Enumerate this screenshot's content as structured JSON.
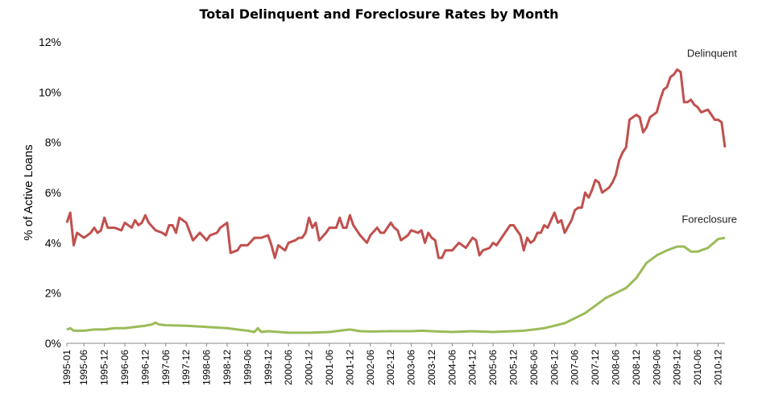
{
  "chart_data": {
    "type": "line",
    "title": "Total Delinquent and Foreclosure Rates by Month",
    "ylabel": "% of Active Loans",
    "ylim": [
      0,
      12
    ],
    "y_ticks": [
      "0%",
      "2%",
      "4%",
      "6%",
      "8%",
      "10%",
      "12%"
    ],
    "x_ticks": [
      "1995-01",
      "1995-06",
      "1995-12",
      "1996-06",
      "1996-12",
      "1997-06",
      "1997-12",
      "1998-06",
      "1998-12",
      "1999-06",
      "1999-12",
      "2000-06",
      "2000-12",
      "2001-06",
      "2001-12",
      "2002-06",
      "2002-12",
      "2003-06",
      "2003-12",
      "2004-06",
      "2004-12",
      "2005-06",
      "2005-12",
      "2006-06",
      "2006-12",
      "2007-06",
      "2007-12",
      "2008-06",
      "2008-12",
      "2009-06",
      "2009-12",
      "2010-06",
      "2010-12"
    ],
    "grid": false,
    "legend": "none",
    "series": [
      {
        "name": "Delinquent",
        "color": "#c0504d",
        "points": [
          [
            "1995-01",
            4.8
          ],
          [
            "1995-02",
            5.2
          ],
          [
            "1995-03",
            3.9
          ],
          [
            "1995-04",
            4.4
          ],
          [
            "1995-06",
            4.2
          ],
          [
            "1995-08",
            4.4
          ],
          [
            "1995-09",
            4.6
          ],
          [
            "1995-10",
            4.4
          ],
          [
            "1995-11",
            4.5
          ],
          [
            "1995-12",
            5.0
          ],
          [
            "1996-01",
            4.6
          ],
          [
            "1996-03",
            4.6
          ],
          [
            "1996-05",
            4.5
          ],
          [
            "1996-06",
            4.8
          ],
          [
            "1996-08",
            4.6
          ],
          [
            "1996-09",
            4.9
          ],
          [
            "1996-10",
            4.7
          ],
          [
            "1996-11",
            4.8
          ],
          [
            "1996-12",
            5.1
          ],
          [
            "1997-01",
            4.8
          ],
          [
            "1997-03",
            4.5
          ],
          [
            "1997-05",
            4.4
          ],
          [
            "1997-06",
            4.3
          ],
          [
            "1997-07",
            4.7
          ],
          [
            "1997-08",
            4.7
          ],
          [
            "1997-09",
            4.4
          ],
          [
            "1997-10",
            5.0
          ],
          [
            "1997-12",
            4.8
          ],
          [
            "1998-02",
            4.1
          ],
          [
            "1998-04",
            4.4
          ],
          [
            "1998-06",
            4.1
          ],
          [
            "1998-07",
            4.3
          ],
          [
            "1998-09",
            4.4
          ],
          [
            "1998-10",
            4.6
          ],
          [
            "1998-12",
            4.8
          ],
          [
            "1999-01",
            3.6
          ],
          [
            "1999-03",
            3.7
          ],
          [
            "1999-04",
            3.9
          ],
          [
            "1999-06",
            3.9
          ],
          [
            "1999-08",
            4.2
          ],
          [
            "1999-10",
            4.2
          ],
          [
            "1999-12",
            4.3
          ],
          [
            "2000-01",
            3.9
          ],
          [
            "2000-02",
            3.4
          ],
          [
            "2000-03",
            3.9
          ],
          [
            "2000-05",
            3.7
          ],
          [
            "2000-06",
            4.0
          ],
          [
            "2000-08",
            4.1
          ],
          [
            "2000-09",
            4.2
          ],
          [
            "2000-10",
            4.2
          ],
          [
            "2000-11",
            4.4
          ],
          [
            "2000-12",
            5.0
          ],
          [
            "2001-01",
            4.6
          ],
          [
            "2001-02",
            4.8
          ],
          [
            "2001-03",
            4.1
          ],
          [
            "2001-05",
            4.4
          ],
          [
            "2001-06",
            4.6
          ],
          [
            "2001-08",
            4.6
          ],
          [
            "2001-09",
            5.0
          ],
          [
            "2001-10",
            4.6
          ],
          [
            "2001-11",
            4.6
          ],
          [
            "2001-12",
            5.1
          ],
          [
            "2002-01",
            4.7
          ],
          [
            "2002-03",
            4.3
          ],
          [
            "2002-05",
            4.0
          ],
          [
            "2002-06",
            4.3
          ],
          [
            "2002-08",
            4.6
          ],
          [
            "2002-09",
            4.4
          ],
          [
            "2002-10",
            4.4
          ],
          [
            "2002-12",
            4.8
          ],
          [
            "2003-01",
            4.6
          ],
          [
            "2003-02",
            4.5
          ],
          [
            "2003-03",
            4.1
          ],
          [
            "2003-05",
            4.3
          ],
          [
            "2003-06",
            4.5
          ],
          [
            "2003-08",
            4.4
          ],
          [
            "2003-09",
            4.5
          ],
          [
            "2003-10",
            4.0
          ],
          [
            "2003-11",
            4.4
          ],
          [
            "2003-12",
            4.2
          ],
          [
            "2004-01",
            4.1
          ],
          [
            "2004-02",
            3.4
          ],
          [
            "2004-03",
            3.4
          ],
          [
            "2004-04",
            3.7
          ],
          [
            "2004-06",
            3.7
          ],
          [
            "2004-08",
            4.0
          ],
          [
            "2004-09",
            3.9
          ],
          [
            "2004-10",
            3.8
          ],
          [
            "2004-12",
            4.2
          ],
          [
            "2005-01",
            4.1
          ],
          [
            "2005-02",
            3.5
          ],
          [
            "2005-03",
            3.7
          ],
          [
            "2005-05",
            3.8
          ],
          [
            "2005-06",
            4.0
          ],
          [
            "2005-07",
            3.9
          ],
          [
            "2005-09",
            4.3
          ],
          [
            "2005-11",
            4.7
          ],
          [
            "2005-12",
            4.7
          ],
          [
            "2006-02",
            4.3
          ],
          [
            "2006-03",
            3.7
          ],
          [
            "2006-04",
            4.2
          ],
          [
            "2006-05",
            4.0
          ],
          [
            "2006-06",
            4.1
          ],
          [
            "2006-07",
            4.4
          ],
          [
            "2006-08",
            4.4
          ],
          [
            "2006-09",
            4.7
          ],
          [
            "2006-10",
            4.6
          ],
          [
            "2006-11",
            4.9
          ],
          [
            "2006-12",
            5.2
          ],
          [
            "2007-01",
            4.8
          ],
          [
            "2007-02",
            4.9
          ],
          [
            "2007-03",
            4.4
          ],
          [
            "2007-05",
            4.9
          ],
          [
            "2007-06",
            5.3
          ],
          [
            "2007-07",
            5.4
          ],
          [
            "2007-08",
            5.4
          ],
          [
            "2007-09",
            6.0
          ],
          [
            "2007-10",
            5.8
          ],
          [
            "2007-11",
            6.1
          ],
          [
            "2007-12",
            6.5
          ],
          [
            "2008-01",
            6.4
          ],
          [
            "2008-02",
            6.0
          ],
          [
            "2008-03",
            6.1
          ],
          [
            "2008-04",
            6.2
          ],
          [
            "2008-05",
            6.4
          ],
          [
            "2008-06",
            6.7
          ],
          [
            "2008-07",
            7.3
          ],
          [
            "2008-08",
            7.6
          ],
          [
            "2008-09",
            7.8
          ],
          [
            "2008-10",
            8.9
          ],
          [
            "2008-11",
            9.0
          ],
          [
            "2008-12",
            9.1
          ],
          [
            "2009-01",
            9.0
          ],
          [
            "2009-02",
            8.4
          ],
          [
            "2009-03",
            8.6
          ],
          [
            "2009-04",
            9.0
          ],
          [
            "2009-05",
            9.1
          ],
          [
            "2009-06",
            9.2
          ],
          [
            "2009-07",
            9.7
          ],
          [
            "2009-08",
            10.1
          ],
          [
            "2009-09",
            10.2
          ],
          [
            "2009-10",
            10.6
          ],
          [
            "2009-11",
            10.7
          ],
          [
            "2009-12",
            10.9
          ],
          [
            "2010-01",
            10.8
          ],
          [
            "2010-02",
            9.6
          ],
          [
            "2010-03",
            9.6
          ],
          [
            "2010-04",
            9.7
          ],
          [
            "2010-05",
            9.5
          ],
          [
            "2010-06",
            9.4
          ],
          [
            "2010-07",
            9.2
          ],
          [
            "2010-09",
            9.3
          ],
          [
            "2010-10",
            9.1
          ],
          [
            "2010-11",
            8.9
          ],
          [
            "2010-12",
            8.9
          ],
          [
            "2011-01",
            8.8
          ],
          [
            "2011-02",
            7.8
          ]
        ]
      },
      {
        "name": "Foreclosure",
        "color": "#9bbb59",
        "points": [
          [
            "1995-01",
            0.55
          ],
          [
            "1995-02",
            0.6
          ],
          [
            "1995-03",
            0.5
          ],
          [
            "1995-06",
            0.5
          ],
          [
            "1995-09",
            0.55
          ],
          [
            "1995-12",
            0.55
          ],
          [
            "1996-03",
            0.6
          ],
          [
            "1996-06",
            0.6
          ],
          [
            "1996-09",
            0.65
          ],
          [
            "1996-12",
            0.7
          ],
          [
            "1997-02",
            0.75
          ],
          [
            "1997-03",
            0.82
          ],
          [
            "1997-04",
            0.75
          ],
          [
            "1997-06",
            0.72
          ],
          [
            "1997-12",
            0.7
          ],
          [
            "1998-06",
            0.65
          ],
          [
            "1998-12",
            0.6
          ],
          [
            "1999-03",
            0.55
          ],
          [
            "1999-06",
            0.5
          ],
          [
            "1999-08",
            0.45
          ],
          [
            "1999-09",
            0.6
          ],
          [
            "1999-10",
            0.45
          ],
          [
            "1999-12",
            0.48
          ],
          [
            "2000-06",
            0.42
          ],
          [
            "2000-12",
            0.42
          ],
          [
            "2001-06",
            0.45
          ],
          [
            "2001-09",
            0.5
          ],
          [
            "2001-12",
            0.55
          ],
          [
            "2002-03",
            0.48
          ],
          [
            "2002-06",
            0.47
          ],
          [
            "2002-12",
            0.48
          ],
          [
            "2003-06",
            0.48
          ],
          [
            "2003-09",
            0.5
          ],
          [
            "2003-12",
            0.48
          ],
          [
            "2004-06",
            0.45
          ],
          [
            "2004-12",
            0.48
          ],
          [
            "2005-06",
            0.45
          ],
          [
            "2005-12",
            0.48
          ],
          [
            "2006-03",
            0.5
          ],
          [
            "2006-06",
            0.55
          ],
          [
            "2006-09",
            0.6
          ],
          [
            "2006-12",
            0.7
          ],
          [
            "2007-03",
            0.8
          ],
          [
            "2007-06",
            1.0
          ],
          [
            "2007-09",
            1.2
          ],
          [
            "2007-12",
            1.5
          ],
          [
            "2008-03",
            1.8
          ],
          [
            "2008-06",
            2.0
          ],
          [
            "2008-09",
            2.2
          ],
          [
            "2008-12",
            2.6
          ],
          [
            "2009-03",
            3.2
          ],
          [
            "2009-06",
            3.5
          ],
          [
            "2009-09",
            3.7
          ],
          [
            "2009-12",
            3.85
          ],
          [
            "2010-02",
            3.85
          ],
          [
            "2010-04",
            3.65
          ],
          [
            "2010-06",
            3.65
          ],
          [
            "2010-09",
            3.8
          ],
          [
            "2010-12",
            4.15
          ],
          [
            "2011-02",
            4.2
          ]
        ]
      }
    ]
  }
}
